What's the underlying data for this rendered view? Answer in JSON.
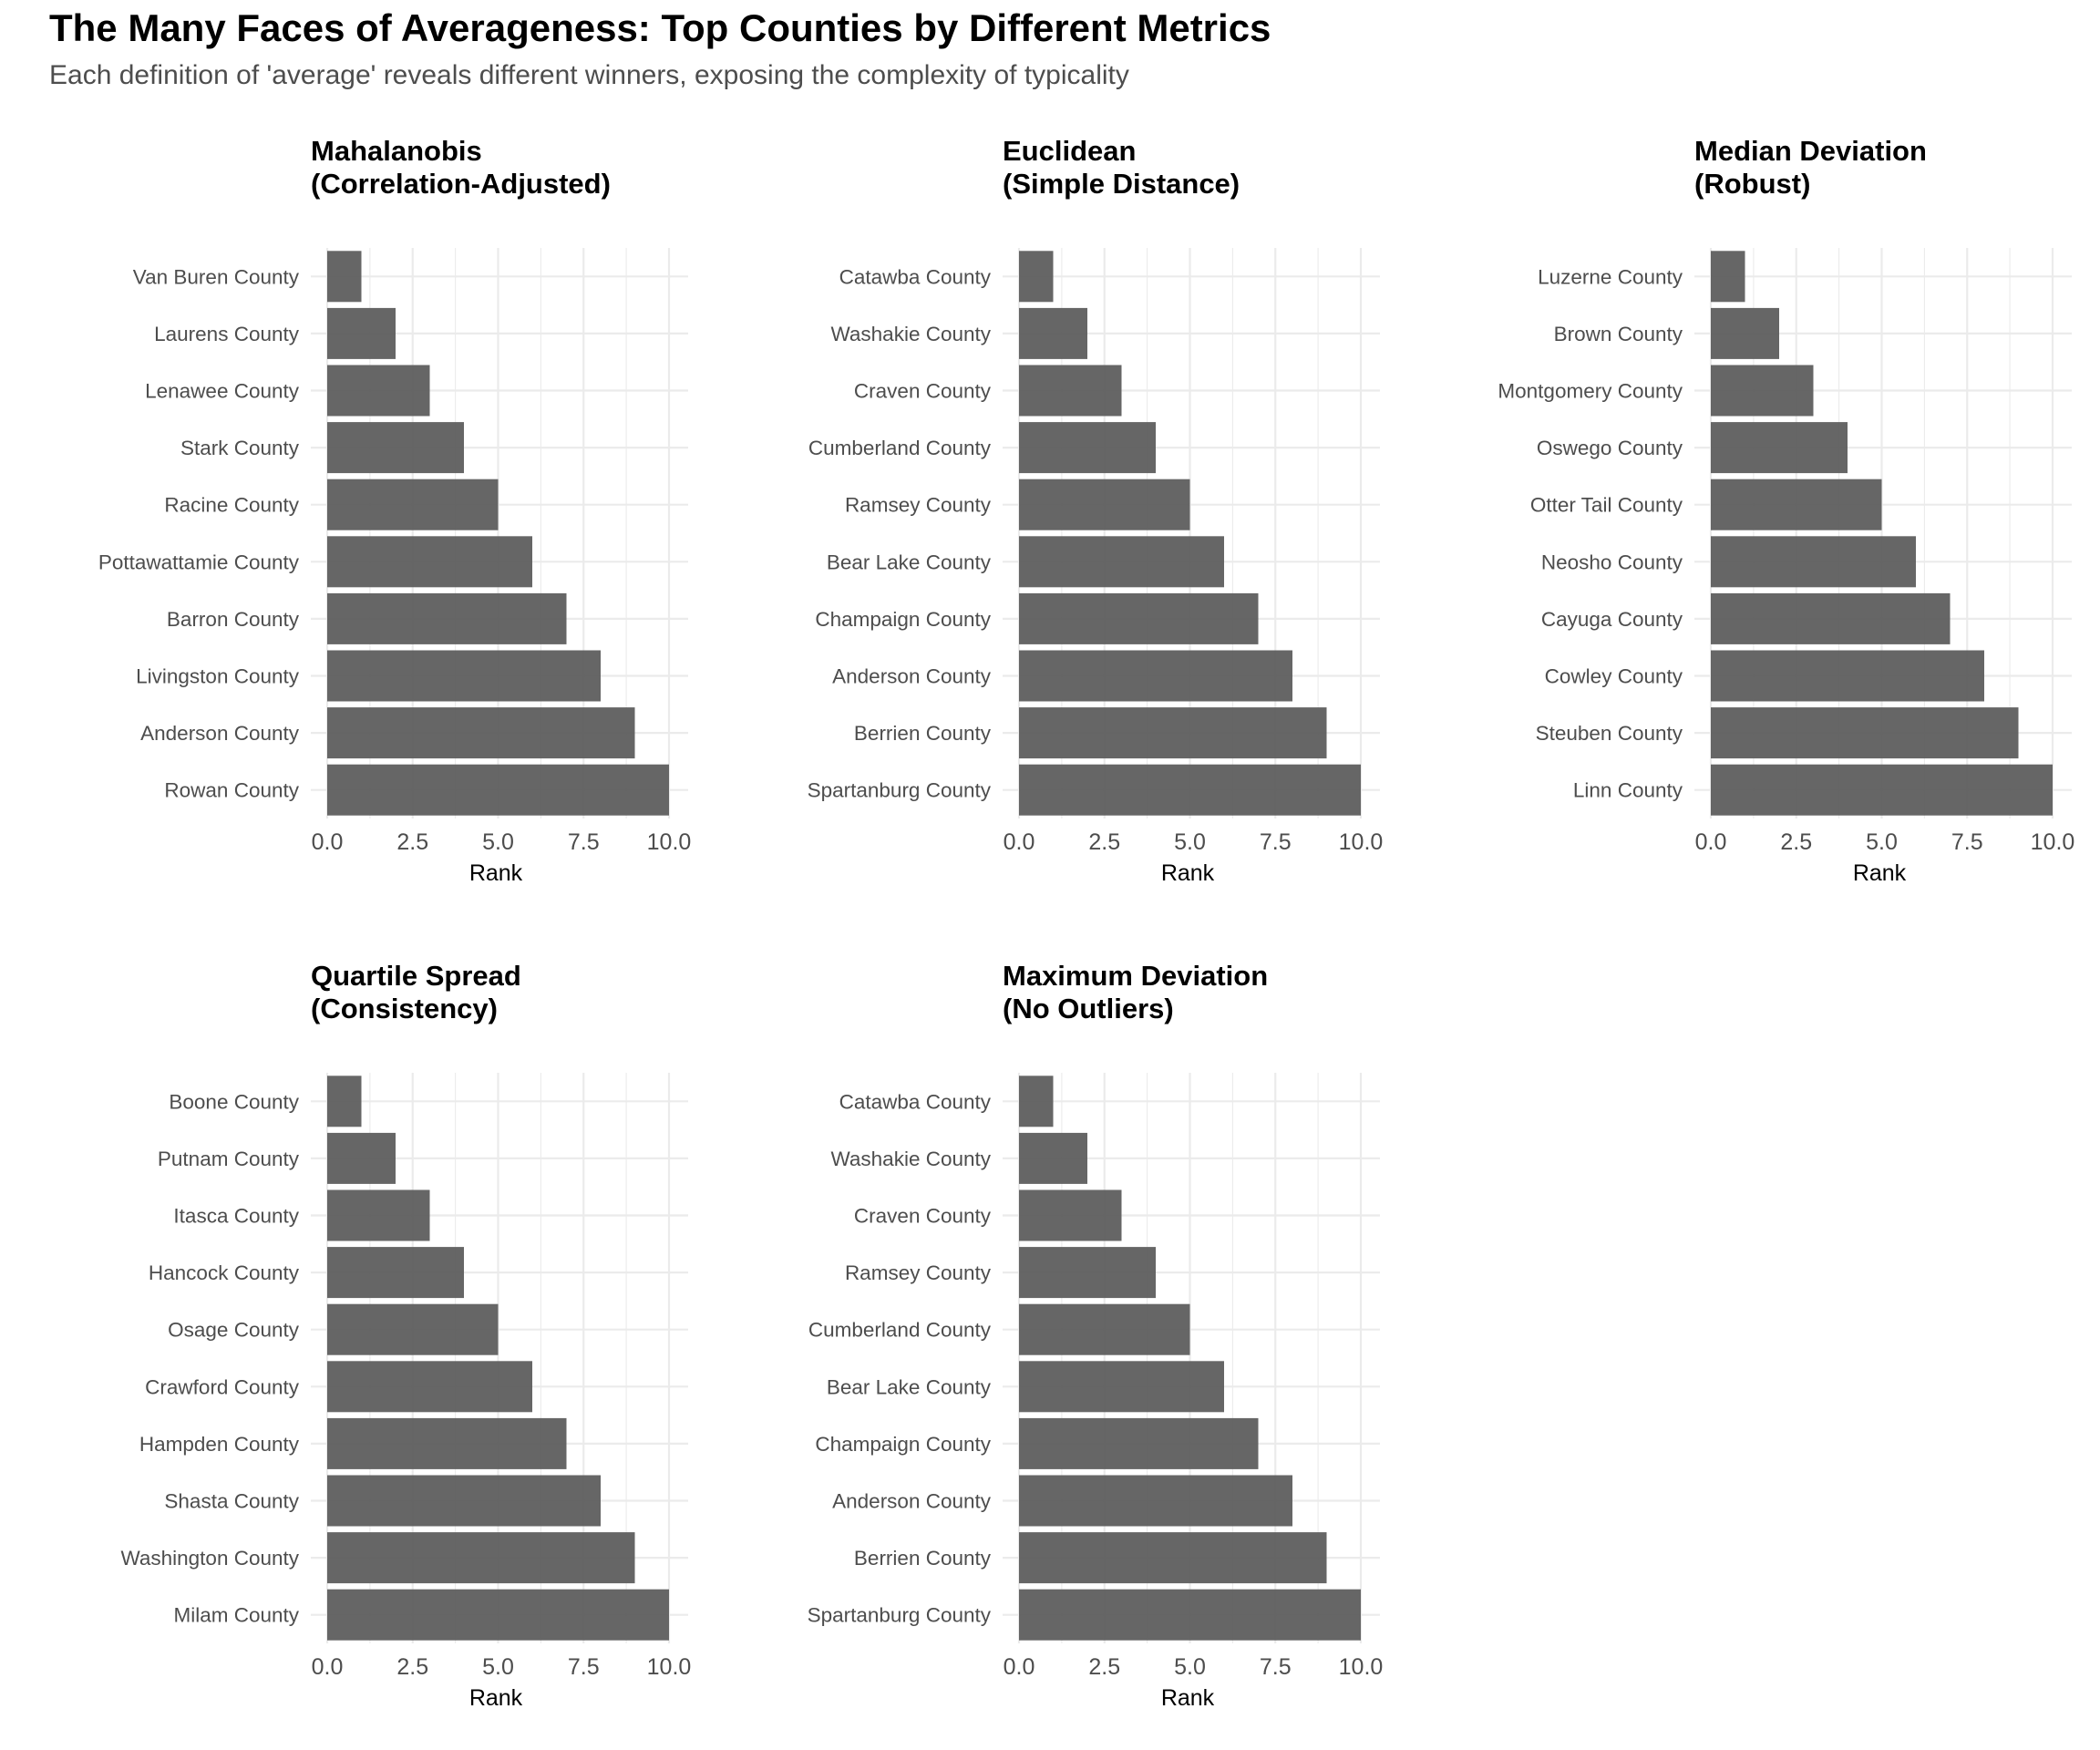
{
  "title": "The Many Faces of Averageness: Top Counties by Different Metrics",
  "subtitle": "Each definition of 'average' reveals different winners, exposing the complexity of typicality",
  "colors": {
    "bar": "#595959",
    "grid": "#ebebeb",
    "background": "#ffffff"
  },
  "chart_data": [
    {
      "type": "bar",
      "orientation": "horizontal",
      "title": "Mahalanobis\n(Correlation-Adjusted)",
      "xlabel": "Rank",
      "ylabel": "",
      "xlim": [
        0,
        10
      ],
      "xticks": [
        "0.0",
        "2.5",
        "5.0",
        "7.5",
        "10.0"
      ],
      "grid": true,
      "categories": [
        "Van Buren County",
        "Laurens County",
        "Lenawee County",
        "Stark County",
        "Racine County",
        "Pottawattamie County",
        "Barron County",
        "Livingston County",
        "Anderson County",
        "Rowan County"
      ],
      "values": [
        1,
        2,
        3,
        4,
        5,
        6,
        7,
        8,
        9,
        10
      ]
    },
    {
      "type": "bar",
      "orientation": "horizontal",
      "title": "Euclidean\n(Simple Distance)",
      "xlabel": "Rank",
      "ylabel": "",
      "xlim": [
        0,
        10
      ],
      "xticks": [
        "0.0",
        "2.5",
        "5.0",
        "7.5",
        "10.0"
      ],
      "grid": true,
      "categories": [
        "Catawba County",
        "Washakie County",
        "Craven County",
        "Cumberland County",
        "Ramsey County",
        "Bear Lake County",
        "Champaign County",
        "Anderson County",
        "Berrien County",
        "Spartanburg County"
      ],
      "values": [
        1,
        2,
        3,
        4,
        5,
        6,
        7,
        8,
        9,
        10
      ]
    },
    {
      "type": "bar",
      "orientation": "horizontal",
      "title": "Median Deviation\n(Robust)",
      "xlabel": "Rank",
      "ylabel": "",
      "xlim": [
        0,
        10
      ],
      "xticks": [
        "0.0",
        "2.5",
        "5.0",
        "7.5",
        "10.0"
      ],
      "grid": true,
      "categories": [
        "Luzerne County",
        "Brown County",
        "Montgomery County",
        "Oswego County",
        "Otter Tail County",
        "Neosho County",
        "Cayuga County",
        "Cowley County",
        "Steuben County",
        "Linn County"
      ],
      "values": [
        1,
        2,
        3,
        4,
        5,
        6,
        7,
        8,
        9,
        10
      ]
    },
    {
      "type": "bar",
      "orientation": "horizontal",
      "title": "Quartile Spread\n(Consistency)",
      "xlabel": "Rank",
      "ylabel": "",
      "xlim": [
        0,
        10
      ],
      "xticks": [
        "0.0",
        "2.5",
        "5.0",
        "7.5",
        "10.0"
      ],
      "grid": true,
      "categories": [
        "Boone County",
        "Putnam County",
        "Itasca County",
        "Hancock County",
        "Osage County",
        "Crawford County",
        "Hampden County",
        "Shasta County",
        "Washington County",
        "Milam County"
      ],
      "values": [
        1,
        2,
        3,
        4,
        5,
        6,
        7,
        8,
        9,
        10
      ]
    },
    {
      "type": "bar",
      "orientation": "horizontal",
      "title": "Maximum Deviation\n(No Outliers)",
      "xlabel": "Rank",
      "ylabel": "",
      "xlim": [
        0,
        10
      ],
      "xticks": [
        "0.0",
        "2.5",
        "5.0",
        "7.5",
        "10.0"
      ],
      "grid": true,
      "categories": [
        "Catawba County",
        "Washakie County",
        "Craven County",
        "Ramsey County",
        "Cumberland County",
        "Bear Lake County",
        "Champaign County",
        "Anderson County",
        "Berrien County",
        "Spartanburg County"
      ],
      "values": [
        1,
        2,
        3,
        4,
        5,
        6,
        7,
        8,
        9,
        10
      ]
    }
  ]
}
